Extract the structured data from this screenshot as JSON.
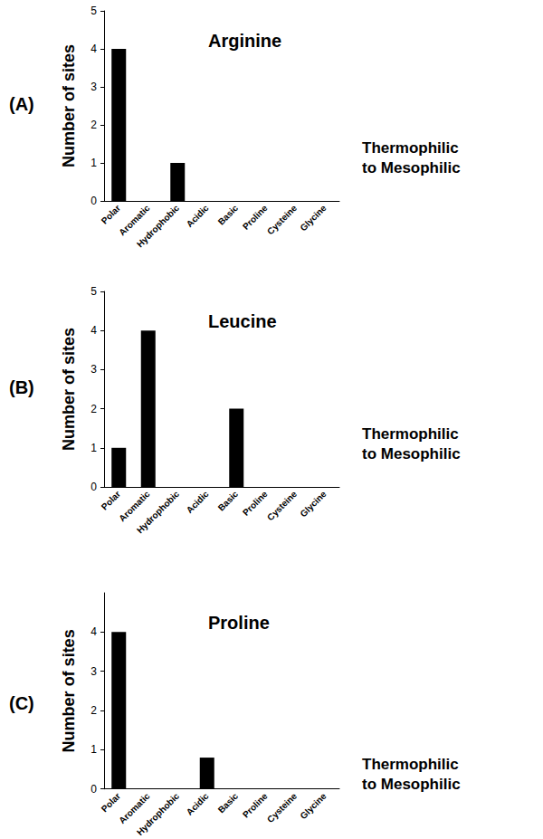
{
  "chart_data": [
    {
      "type": "bar",
      "panel_label": "(A)",
      "title": "Arginine",
      "y_label": "Number of sites",
      "annotation": "Thermophilic to Mesophilic",
      "categories": [
        "Polar",
        "Aromatic",
        "Hydrophobic",
        "Acidic",
        "Basic",
        "Proline",
        "Cysteine",
        "Glycine"
      ],
      "values": [
        4,
        0,
        1,
        0,
        0,
        0,
        0,
        0
      ],
      "color": "#000000",
      "ylim": [
        0,
        5
      ],
      "yticks": [
        0,
        1,
        2,
        3,
        4,
        5
      ],
      "grid": false
    },
    {
      "type": "bar",
      "panel_label": "(B)",
      "title": "Leucine",
      "y_label": "Number of sites",
      "annotation": "Thermophilic to Mesophilic",
      "categories": [
        "Polar",
        "Aromatic",
        "Hydrophobic",
        "Acidic",
        "Basic",
        "Proline",
        "Cysteine",
        "Glycine"
      ],
      "values": [
        1,
        4,
        0,
        0,
        2,
        0,
        0,
        0
      ],
      "color": "#000000",
      "ylim": [
        0,
        5
      ],
      "yticks": [
        0,
        1,
        2,
        3,
        4,
        5
      ],
      "grid": false
    },
    {
      "type": "bar",
      "panel_label": "(C)",
      "title": "Proline",
      "y_label": "Number of sites",
      "annotation": "Thermophilic to Mesophilic",
      "categories": [
        "Polar",
        "Aromatic",
        "Hydrophobic",
        "Acidic",
        "Basic",
        "Proline",
        "Cysteine",
        "Glycine"
      ],
      "values": [
        4,
        0,
        0,
        0.8,
        0,
        0,
        0,
        0
      ],
      "color": "#000000",
      "ylim": [
        0,
        5
      ],
      "yticks": [
        0,
        1,
        2,
        3,
        4
      ],
      "grid": false
    }
  ]
}
